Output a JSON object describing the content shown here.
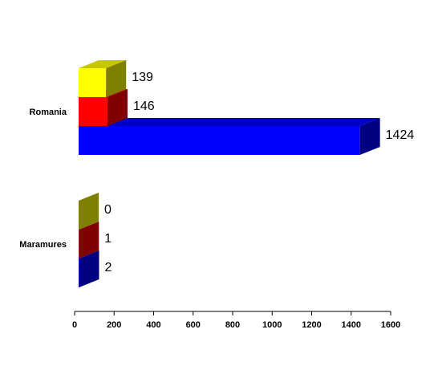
{
  "chart_data": {
    "type": "bar",
    "orientation": "horizontal",
    "three_d": true,
    "categories": [
      "Romania",
      "Maramures"
    ],
    "series": [
      {
        "color": "#0000ff",
        "values": [
          1424,
          2
        ]
      },
      {
        "color": "#ff0000",
        "values": [
          146,
          1
        ]
      },
      {
        "color": "#ffff00",
        "values": [
          139,
          0
        ]
      }
    ],
    "xlim": [
      0,
      1600
    ],
    "xticks": [
      0,
      200,
      400,
      600,
      800,
      1000,
      1200,
      1400,
      1600
    ]
  }
}
